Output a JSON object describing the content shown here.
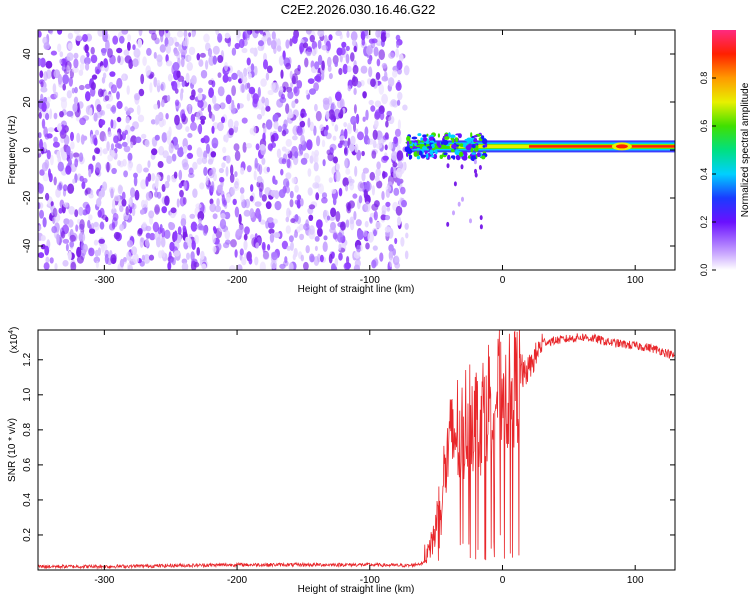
{
  "title": "C2E2.2026.030.16.46.G22",
  "colors": {
    "snr_line": "#e8262a",
    "noise_purple": "#7a20e8",
    "noise_light": "#c9a6ff",
    "frame": "#000000"
  },
  "chart_data": [
    {
      "type": "heatmap",
      "name": "spectrogram",
      "xlabel": "Height of straight line (km)",
      "ylabel": "Frequency (Hz)",
      "xlim": [
        -350,
        130
      ],
      "ylim": [
        -50,
        50
      ],
      "xticks": [
        -300,
        -200,
        -100,
        0,
        100
      ],
      "yticks": [
        -40,
        -20,
        0,
        20,
        40
      ],
      "noise_region_x": [
        -350,
        -72
      ],
      "signal_start_x": -72,
      "signal_frequency_hz": 1.5,
      "colorbar": {
        "label": "Normalized spectral amplitude",
        "range": [
          0,
          1
        ],
        "ticks": [
          0.0,
          0.2,
          0.4,
          0.6,
          0.8
        ]
      }
    },
    {
      "type": "line",
      "name": "snr",
      "xlabel": "Height of straight line (km)",
      "ylabel": "SNR (10 * v/v)",
      "multiplier": "(x10",
      "multiplier_exp": "4",
      "multiplier_close": ")",
      "xlim": [
        -350,
        130
      ],
      "ylim": [
        0,
        1.37
      ],
      "xticks": [
        -300,
        -200,
        -100,
        0,
        100
      ],
      "yticks": [
        0.2,
        0.4,
        0.6,
        0.8,
        1.0,
        1.2
      ],
      "series": [
        {
          "name": "SNR",
          "x": [
            -350,
            -300,
            -250,
            -200,
            -150,
            -100,
            -70,
            -60,
            -55,
            -50,
            -45,
            -40,
            -35,
            -30,
            -25,
            -20,
            -15,
            -10,
            -5,
            0,
            5,
            10,
            15,
            20,
            25,
            30,
            40,
            50,
            60,
            70,
            80,
            90,
            100,
            110,
            120,
            130
          ],
          "values": [
            0.02,
            0.02,
            0.025,
            0.03,
            0.03,
            0.03,
            0.025,
            0.04,
            0.1,
            0.25,
            0.5,
            0.7,
            0.8,
            0.75,
            0.95,
            0.85,
            0.9,
            1.0,
            1.0,
            1.05,
            1.0,
            1.05,
            1.1,
            1.15,
            1.22,
            1.3,
            1.31,
            1.32,
            1.33,
            1.32,
            1.3,
            1.29,
            1.28,
            1.27,
            1.25,
            1.22
          ]
        }
      ]
    }
  ]
}
